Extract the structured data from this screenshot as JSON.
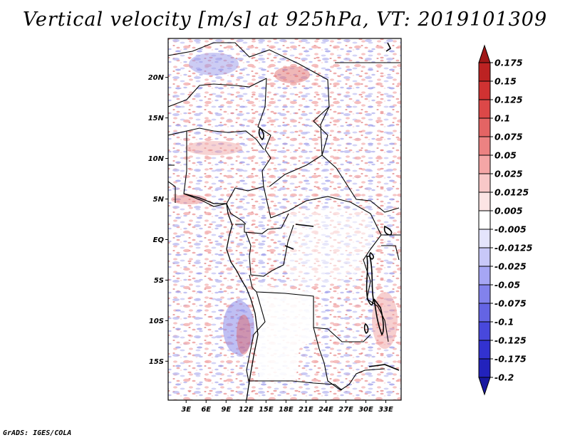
{
  "title": "Vertical velocity [m/s] at 925hPa, VT: 2019101309",
  "footer": "GrADS: IGES/COLA",
  "map": {
    "lat_ticks": [
      {
        "label": "20N",
        "lat": 20
      },
      {
        "label": "15N",
        "lat": 15
      },
      {
        "label": "10N",
        "lat": 10
      },
      {
        "label": "5N",
        "lat": 5
      },
      {
        "label": "EQ",
        "lat": 0
      },
      {
        "label": "5S",
        "lat": -5
      },
      {
        "label": "10S",
        "lat": -10
      },
      {
        "label": "15S",
        "lat": -15
      }
    ],
    "lon_ticks": [
      {
        "label": "3E",
        "lon": 3
      },
      {
        "label": "6E",
        "lon": 6
      },
      {
        "label": "9E",
        "lon": 9
      },
      {
        "label": "12E",
        "lon": 12
      },
      {
        "label": "15E",
        "lon": 15
      },
      {
        "label": "18E",
        "lon": 18
      },
      {
        "label": "21E",
        "lon": 21
      },
      {
        "label": "24E",
        "lon": 24
      },
      {
        "label": "27E",
        "lon": 27
      },
      {
        "label": "30E",
        "lon": 30
      },
      {
        "label": "33E",
        "lon": 33
      }
    ],
    "lon_range": [
      0.3,
      35.3
    ],
    "lat_range": [
      -19.8,
      24.8
    ]
  },
  "colorbar": {
    "labels": [
      "0.175",
      "0.15",
      "0.125",
      "0.1",
      "0.075",
      "0.05",
      "0.025",
      "0.0125",
      "0.005",
      "-0.005",
      "-0.0125",
      "-0.025",
      "-0.05",
      "-0.075",
      "-0.1",
      "-0.125",
      "-0.175",
      "-0.2"
    ],
    "colors": [
      "#a01818",
      "#bc2222",
      "#d03232",
      "#dc4848",
      "#e46464",
      "#ec8282",
      "#f4a6a6",
      "#f8c8c8",
      "#fce4e4",
      "#ffffff",
      "#e4e4fc",
      "#c8c8f8",
      "#a6a6f4",
      "#8282ec",
      "#6464e4",
      "#4848dc",
      "#3232d0",
      "#2222bc",
      "#1818a0"
    ]
  }
}
